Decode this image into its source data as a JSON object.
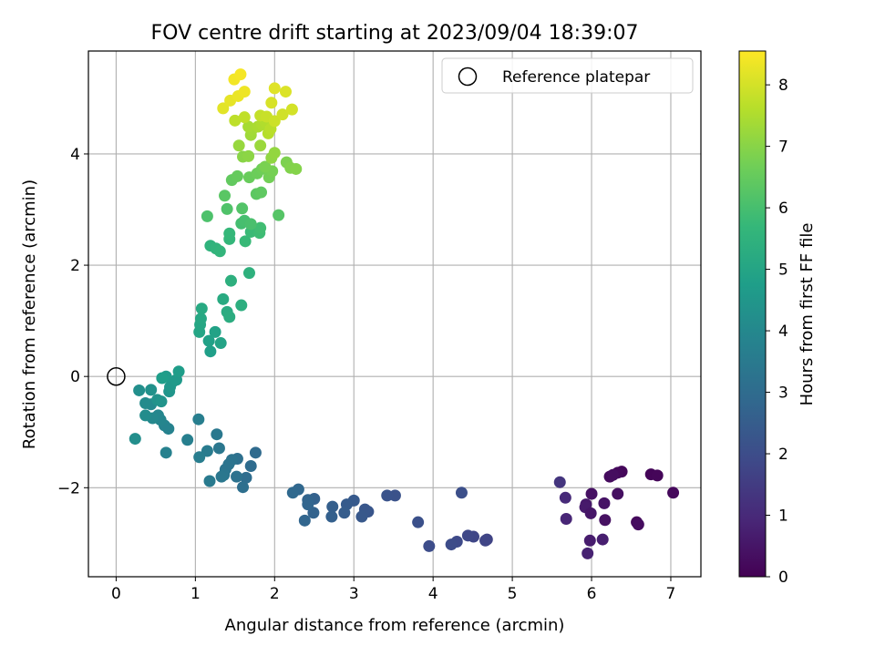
{
  "chart_data": {
    "type": "scatter",
    "title": "FOV centre drift starting at 2023/09/04 18:39:07",
    "xlabel": "Angular distance from reference (arcmin)",
    "ylabel": "Rotation from reference (arcmin)",
    "xlim": [
      -0.35,
      7.38
    ],
    "ylim": [
      -3.6,
      5.85
    ],
    "xticks": [
      0,
      1,
      2,
      3,
      4,
      5,
      6,
      7
    ],
    "xtick_labels": [
      "0",
      "1",
      "2",
      "3",
      "4",
      "5",
      "6",
      "7"
    ],
    "yticks": [
      -2,
      0,
      2,
      4
    ],
    "ytick_labels": [
      "−2",
      "0",
      "2",
      "4"
    ],
    "grid": true,
    "legend": {
      "position": "top-right",
      "entries": [
        "Reference platepar"
      ]
    },
    "reference_point": {
      "label": "Reference platepar",
      "x": 0,
      "y": 0,
      "marker": "hollow-circle"
    },
    "colorbar": {
      "label": "Hours from first FF file",
      "colormap": "viridis",
      "range": [
        0,
        8.55
      ],
      "ticks": [
        0,
        1,
        2,
        3,
        4,
        5,
        6,
        7,
        8
      ],
      "tick_labels": [
        "0",
        "1",
        "2",
        "3",
        "4",
        "5",
        "6",
        "7",
        "8"
      ]
    },
    "points": [
      [
        6.38,
        -1.71,
        0.15
      ],
      [
        6.75,
        -1.76,
        0.1
      ],
      [
        6.83,
        -1.78,
        0.12
      ],
      [
        6.33,
        -1.73,
        0.2
      ],
      [
        6.23,
        -1.8,
        0.25
      ],
      [
        6.27,
        -1.77,
        0.3
      ],
      [
        7.03,
        -2.09,
        0.18
      ],
      [
        6.33,
        -2.11,
        0.35
      ],
      [
        6.0,
        -2.11,
        0.4
      ],
      [
        6.16,
        -2.28,
        0.45
      ],
      [
        5.93,
        -2.3,
        0.55
      ],
      [
        5.92,
        -2.35,
        0.6
      ],
      [
        5.99,
        -2.46,
        0.5
      ],
      [
        6.17,
        -2.58,
        0.38
      ],
      [
        6.57,
        -2.62,
        0.22
      ],
      [
        6.59,
        -2.66,
        0.28
      ],
      [
        5.98,
        -2.95,
        0.65
      ],
      [
        6.14,
        -2.93,
        0.7
      ],
      [
        5.95,
        -3.18,
        0.8
      ],
      [
        5.68,
        -2.56,
        0.9
      ],
      [
        5.67,
        -2.18,
        1.0
      ],
      [
        5.6,
        -1.9,
        1.3
      ],
      [
        4.68,
        -2.93,
        1.7
      ],
      [
        4.66,
        -2.95,
        1.75
      ],
      [
        4.51,
        -2.88,
        1.8
      ],
      [
        4.44,
        -2.86,
        1.85
      ],
      [
        4.3,
        -2.97,
        1.9
      ],
      [
        4.23,
        -3.02,
        1.95
      ],
      [
        3.95,
        -3.05,
        2.0
      ],
      [
        4.36,
        -2.09,
        2.05
      ],
      [
        3.81,
        -2.62,
        2.1
      ],
      [
        3.52,
        -2.14,
        2.15
      ],
      [
        3.42,
        -2.14,
        2.2
      ],
      [
        3.18,
        -2.43,
        2.25
      ],
      [
        3.14,
        -2.39,
        2.3
      ],
      [
        3.1,
        -2.52,
        2.35
      ],
      [
        3.0,
        -2.23,
        2.4
      ],
      [
        2.91,
        -2.3,
        2.45
      ],
      [
        2.88,
        -2.45,
        2.5
      ],
      [
        2.73,
        -2.34,
        2.55
      ],
      [
        2.72,
        -2.52,
        2.6
      ],
      [
        2.5,
        -2.2,
        2.65
      ],
      [
        2.49,
        -2.45,
        2.7
      ],
      [
        2.42,
        -2.22,
        2.75
      ],
      [
        2.42,
        -2.3,
        2.78
      ],
      [
        2.38,
        -2.59,
        2.8
      ],
      [
        2.3,
        -2.03,
        2.85
      ],
      [
        2.23,
        -2.09,
        2.9
      ],
      [
        1.76,
        -1.37,
        2.95
      ],
      [
        1.7,
        -1.61,
        3.0
      ],
      [
        1.64,
        -1.82,
        3.05
      ],
      [
        1.6,
        -1.99,
        3.1
      ],
      [
        1.53,
        -1.48,
        3.15
      ],
      [
        1.52,
        -1.8,
        3.2
      ],
      [
        1.46,
        -1.5,
        3.25
      ],
      [
        1.42,
        -1.58,
        3.28
      ],
      [
        1.38,
        -1.67,
        3.3
      ],
      [
        1.36,
        -1.77,
        3.35
      ],
      [
        1.33,
        -1.8,
        3.38
      ],
      [
        1.3,
        -1.29,
        3.4
      ],
      [
        1.27,
        -1.04,
        3.45
      ],
      [
        1.18,
        -1.88,
        3.5
      ],
      [
        1.15,
        -1.34,
        3.55
      ],
      [
        1.05,
        -1.45,
        3.6
      ],
      [
        1.04,
        -0.77,
        3.65
      ],
      [
        0.9,
        -1.14,
        3.7
      ],
      [
        0.63,
        -1.37,
        3.75
      ],
      [
        0.66,
        -0.94,
        3.8
      ],
      [
        0.61,
        -0.88,
        3.85
      ],
      [
        0.56,
        -0.78,
        3.9
      ],
      [
        0.53,
        -0.7,
        3.95
      ],
      [
        0.46,
        -0.75,
        4.0
      ],
      [
        0.44,
        -0.5,
        4.05
      ],
      [
        0.37,
        -0.48,
        4.1
      ],
      [
        0.37,
        -0.7,
        4.15
      ],
      [
        0.24,
        -1.12,
        4.2
      ],
      [
        0.29,
        -0.25,
        4.25
      ],
      [
        0.44,
        -0.24,
        4.3
      ],
      [
        0.52,
        -0.42,
        4.35
      ],
      [
        0.57,
        -0.45,
        4.4
      ],
      [
        0.67,
        -0.27,
        4.45
      ],
      [
        0.68,
        -0.19,
        4.5
      ],
      [
        0.71,
        -0.1,
        4.55
      ],
      [
        0.76,
        -0.06,
        4.6
      ],
      [
        0.63,
        0.0,
        4.65
      ],
      [
        0.79,
        0.09,
        4.7
      ],
      [
        0.58,
        -0.03,
        4.75
      ],
      [
        1.19,
        0.45,
        4.8
      ],
      [
        1.17,
        0.64,
        4.85
      ],
      [
        1.25,
        0.8,
        4.9
      ],
      [
        1.32,
        0.6,
        4.95
      ],
      [
        1.05,
        0.8,
        5.0
      ],
      [
        1.06,
        0.93,
        5.05
      ],
      [
        1.07,
        1.04,
        5.1
      ],
      [
        1.08,
        1.22,
        5.15
      ],
      [
        1.35,
        1.39,
        5.2
      ],
      [
        1.4,
        1.16,
        5.25
      ],
      [
        1.43,
        1.07,
        5.3
      ],
      [
        1.58,
        1.28,
        5.35
      ],
      [
        1.45,
        1.72,
        5.4
      ],
      [
        1.68,
        1.86,
        5.45
      ],
      [
        1.19,
        2.35,
        5.5
      ],
      [
        1.26,
        2.3,
        5.55
      ],
      [
        1.31,
        2.25,
        5.6
      ],
      [
        1.43,
        2.47,
        5.65
      ],
      [
        1.43,
        2.57,
        5.7
      ],
      [
        1.63,
        2.43,
        5.75
      ],
      [
        1.7,
        2.6,
        5.8
      ],
      [
        1.81,
        2.58,
        5.85
      ],
      [
        1.82,
        2.67,
        5.9
      ],
      [
        1.58,
        2.75,
        5.95
      ],
      [
        1.62,
        2.8,
        6.0
      ],
      [
        1.7,
        2.74,
        6.05
      ],
      [
        1.15,
        2.88,
        6.1
      ],
      [
        1.4,
        3.01,
        6.15
      ],
      [
        1.59,
        3.02,
        6.2
      ],
      [
        2.05,
        2.9,
        6.25
      ],
      [
        1.37,
        3.25,
        6.3
      ],
      [
        1.77,
        3.28,
        6.35
      ],
      [
        1.83,
        3.31,
        6.4
      ],
      [
        1.46,
        3.53,
        6.45
      ],
      [
        1.53,
        3.6,
        6.5
      ],
      [
        1.68,
        3.58,
        6.55
      ],
      [
        1.78,
        3.65,
        6.6
      ],
      [
        1.84,
        3.73,
        6.65
      ],
      [
        1.93,
        3.58,
        6.7
      ],
      [
        1.97,
        3.69,
        6.75
      ],
      [
        1.88,
        3.77,
        6.8
      ],
      [
        2.15,
        3.85,
        6.85
      ],
      [
        2.2,
        3.75,
        6.9
      ],
      [
        2.27,
        3.73,
        6.95
      ],
      [
        1.6,
        3.95,
        7.0
      ],
      [
        1.67,
        3.96,
        7.05
      ],
      [
        1.96,
        3.93,
        7.1
      ],
      [
        2.0,
        4.02,
        7.15
      ],
      [
        1.55,
        4.15,
        7.2
      ],
      [
        1.82,
        4.15,
        7.25
      ],
      [
        1.7,
        4.34,
        7.3
      ],
      [
        1.71,
        4.43,
        7.35
      ],
      [
        1.67,
        4.49,
        7.4
      ],
      [
        1.79,
        4.49,
        7.45
      ],
      [
        1.84,
        4.53,
        7.5
      ],
      [
        1.88,
        4.58,
        7.55
      ],
      [
        1.92,
        4.37,
        7.6
      ],
      [
        1.95,
        4.45,
        7.65
      ],
      [
        1.5,
        4.6,
        7.7
      ],
      [
        1.62,
        4.66,
        7.75
      ],
      [
        1.82,
        4.69,
        7.8
      ],
      [
        1.9,
        4.67,
        7.85
      ],
      [
        2.0,
        4.59,
        7.9
      ],
      [
        2.1,
        4.71,
        7.95
      ],
      [
        2.22,
        4.8,
        8.0
      ],
      [
        1.96,
        4.92,
        8.05
      ],
      [
        2.14,
        5.12,
        8.1
      ],
      [
        2.0,
        5.18,
        8.15
      ],
      [
        1.35,
        4.82,
        8.2
      ],
      [
        1.44,
        4.96,
        8.25
      ],
      [
        1.54,
        5.04,
        8.3
      ],
      [
        1.62,
        5.12,
        8.35
      ],
      [
        1.49,
        5.34,
        8.4
      ],
      [
        1.57,
        5.43,
        8.45
      ]
    ]
  }
}
